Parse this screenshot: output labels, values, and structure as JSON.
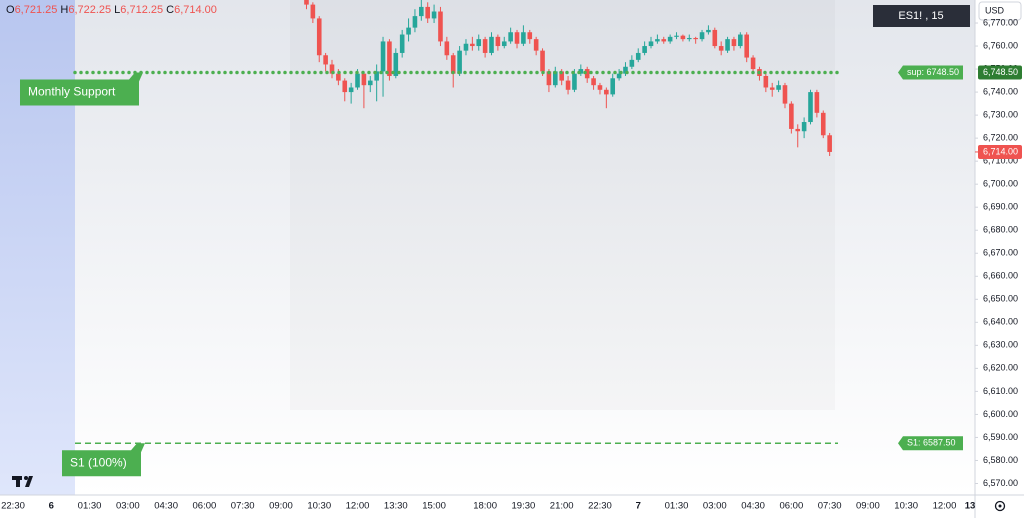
{
  "chart_data": {
    "type": "candlestick",
    "symbol": "ES1! , 15",
    "currency": "USD",
    "ohlc_header": [
      {
        "key": "O",
        "value": "6,721.25"
      },
      {
        "key": "H",
        "value": "6,722.25"
      },
      {
        "key": "L",
        "value": "6,712.25"
      },
      {
        "key": "C",
        "value": "6,714.00"
      }
    ],
    "categories": [
      "22:30",
      null,
      null,
      null,
      null,
      null,
      "6",
      null,
      null,
      null,
      null,
      null,
      "01:30",
      null,
      null,
      null,
      null,
      null,
      "03:00",
      null,
      null,
      null,
      null,
      null,
      "04:30",
      null,
      null,
      null,
      null,
      null,
      "06:00",
      null,
      null,
      null,
      null,
      null,
      "07:30",
      null,
      null,
      null,
      null,
      null,
      "09:00",
      null,
      null,
      null,
      null,
      null,
      "10:30",
      null,
      null,
      null,
      null,
      null,
      "12:00",
      null,
      null,
      null,
      null,
      null,
      "13:30",
      null,
      null,
      null,
      null,
      null,
      "15:00",
      null,
      null,
      null,
      null,
      null,
      null,
      null,
      "18:00",
      null,
      null,
      null,
      null,
      null,
      "19:30",
      null,
      null,
      null,
      null,
      null,
      "21:00",
      null,
      null,
      null,
      null,
      null,
      "22:30",
      null,
      null,
      null,
      null,
      null,
      "7",
      null,
      null,
      null,
      null,
      null,
      "01:30",
      null,
      null,
      null,
      null,
      null,
      "03:00",
      null,
      null,
      null,
      null,
      null,
      "04:30",
      null,
      null,
      null,
      null,
      null,
      "06:00",
      null,
      null,
      null,
      null,
      null,
      "07:30",
      null,
      null,
      null,
      null,
      null,
      "09:00",
      null,
      null,
      null,
      null,
      null,
      "10:30",
      null,
      null,
      null,
      null,
      null,
      "12:00",
      null,
      null,
      null,
      "13"
    ],
    "open": [
      null,
      null,
      null,
      null,
      null,
      null,
      null,
      null,
      null,
      null,
      null,
      null,
      null,
      null,
      null,
      null,
      null,
      null,
      null,
      null,
      null,
      null,
      null,
      null,
      null,
      null,
      null,
      null,
      null,
      null,
      null,
      null,
      null,
      null,
      null,
      null,
      null,
      null,
      null,
      null,
      null,
      null,
      null,
      null,
      null,
      null,
      6782,
      6778,
      6772,
      6756,
      6752,
      6748,
      6745,
      6740,
      6742,
      6748,
      6743,
      6745,
      6749,
      6762,
      6747,
      6757,
      6765,
      6768,
      6773,
      6777,
      6772,
      6775,
      6762,
      6756,
      6748,
      6758,
      6761,
      6760,
      6763,
      6757,
      6764,
      6760,
      6762,
      6766,
      6761,
      6766,
      6763,
      6758,
      6749,
      6743,
      6749,
      6745,
      6741,
      6748,
      6750,
      6746,
      6743,
      6741,
      6739,
      6746,
      6748,
      6751,
      6754,
      6757,
      6760,
      6762,
      6763,
      6762,
      6764,
      6764.5,
      6763,
      6763.5,
      6763,
      6766,
      6767,
      6760,
      6758,
      6763,
      6760,
      6765,
      6755,
      6750,
      6747,
      6742,
      6741,
      6743,
      6735,
      6724,
      6723,
      6727,
      6740,
      6731,
      6721.25,
      null,
      null,
      null,
      null,
      null,
      null,
      null,
      null,
      null,
      null,
      null,
      null,
      null,
      null,
      null,
      null,
      null,
      null,
      null,
      null,
      null,
      null
    ],
    "high": [
      null,
      null,
      null,
      null,
      null,
      null,
      null,
      null,
      null,
      null,
      null,
      null,
      null,
      null,
      null,
      null,
      null,
      null,
      null,
      null,
      null,
      null,
      null,
      null,
      null,
      null,
      null,
      null,
      null,
      null,
      null,
      null,
      null,
      null,
      null,
      null,
      null,
      null,
      null,
      null,
      null,
      null,
      null,
      null,
      null,
      null,
      6783,
      6779,
      6773,
      6757,
      6754,
      6750,
      6746,
      6744,
      6750,
      6749,
      6747,
      6752,
      6764,
      6763,
      6759,
      6767,
      6772,
      6776,
      6780,
      6779,
      6778,
      6777,
      6764,
      6757,
      6760,
      6763,
      6764,
      6765,
      6764,
      6766,
      6765,
      6764,
      6768,
      6767,
      6769,
      6767,
      6764,
      6759,
      6750,
      6751,
      6750,
      6747,
      6750,
      6752,
      6751,
      6747,
      6744,
      6742,
      6748,
      6750,
      6753,
      6756,
      6759,
      6762,
      6764,
      6765,
      6764,
      6765,
      6766,
      6765,
      6765,
      6764,
      6767,
      6769,
      6768,
      6762,
      6764,
      6764,
      6766,
      6766,
      6756,
      6751,
      6748,
      6744,
      6745,
      6744,
      6736,
      6726,
      6729,
      6741,
      6741,
      6732,
      6722.25,
      null,
      null,
      null,
      null,
      null,
      null,
      null,
      null,
      null,
      null,
      null,
      null,
      null,
      null,
      null,
      null,
      null,
      null,
      null,
      null,
      null,
      null
    ],
    "low": [
      null,
      null,
      null,
      null,
      null,
      null,
      null,
      null,
      null,
      null,
      null,
      null,
      null,
      null,
      null,
      null,
      null,
      null,
      null,
      null,
      null,
      null,
      null,
      null,
      null,
      null,
      null,
      null,
      null,
      null,
      null,
      null,
      null,
      null,
      null,
      null,
      null,
      null,
      null,
      null,
      null,
      null,
      null,
      null,
      null,
      null,
      6776,
      6770,
      6753,
      6749,
      6746,
      6743,
      6736,
      6735,
      6741,
      6733,
      6740,
      6736,
      6738,
      6745,
      6746,
      6755,
      6762,
      6766,
      6771,
      6770,
      6770,
      6760,
      6754,
      6742,
      6747,
      6756,
      6758,
      6758,
      6755,
      6756,
      6758,
      6759,
      6761,
      6759,
      6760,
      6761,
      6756,
      6747,
      6740,
      6742,
      6743,
      6739,
      6740,
      6747,
      6744,
      6741,
      6739,
      6733,
      6738,
      6745,
      6747,
      6750,
      6753,
      6756,
      6759,
      6761,
      6761,
      6761,
      6763,
      6762,
      6762,
      6761,
      6762,
      6765,
      6759,
      6756,
      6757,
      6758,
      6759,
      6753,
      6748,
      6745,
      6740,
      6738,
      6740,
      6733,
      6722,
      6716,
      6720,
      6726,
      6729,
      6720,
      6712.25,
      null,
      null,
      null,
      null,
      null,
      null,
      null,
      null,
      null,
      null,
      null,
      null,
      null,
      null,
      null,
      null,
      null,
      null,
      null,
      null,
      null,
      null
    ],
    "close": [
      null,
      null,
      null,
      null,
      null,
      null,
      null,
      null,
      null,
      null,
      null,
      null,
      null,
      null,
      null,
      null,
      null,
      null,
      null,
      null,
      null,
      null,
      null,
      null,
      null,
      null,
      null,
      null,
      null,
      null,
      null,
      null,
      null,
      null,
      null,
      null,
      null,
      null,
      null,
      null,
      null,
      null,
      null,
      null,
      null,
      null,
      6778,
      6772,
      6756,
      6752,
      6748,
      6745,
      6740,
      6742,
      6748,
      6743,
      6745,
      6749,
      6762,
      6747,
      6757,
      6765,
      6768,
      6773,
      6777,
      6772,
      6775,
      6762,
      6756,
      6748,
      6758,
      6761,
      6760,
      6763,
      6757,
      6764,
      6760,
      6762,
      6766,
      6761,
      6766,
      6763,
      6758,
      6749,
      6743,
      6749,
      6745,
      6741,
      6748,
      6750,
      6746,
      6743,
      6741,
      6739,
      6746,
      6748,
      6751,
      6754,
      6757,
      6760,
      6762,
      6763,
      6762,
      6764,
      6764.5,
      6763,
      6763.5,
      6763,
      6766,
      6767,
      6760,
      6758,
      6763,
      6760,
      6765,
      6755,
      6750,
      6747,
      6742,
      6741,
      6743,
      6735,
      6724,
      6723,
      6727,
      6740,
      6731,
      6721.25,
      6714,
      null,
      null,
      null,
      null,
      null,
      null,
      null,
      null,
      null,
      null,
      null,
      null,
      null,
      null,
      null,
      null,
      null,
      null,
      null,
      null,
      null,
      null
    ],
    "up_color": "#26a69a",
    "down_color": "#ef5350",
    "ylim": [
      6565,
      6780
    ],
    "yticks": [
      {
        "value": 6570,
        "label": "6,570.00"
      },
      {
        "value": 6580,
        "label": "6,580.00"
      },
      {
        "value": 6590,
        "label": "6,590.00"
      },
      {
        "value": 6600,
        "label": "6,600.00"
      },
      {
        "value": 6610,
        "label": "6,610.00"
      },
      {
        "value": 6620,
        "label": "6,620.00"
      },
      {
        "value": 6630,
        "label": "6,630.00"
      },
      {
        "value": 6640,
        "label": "6,640.00"
      },
      {
        "value": 6650,
        "label": "6,650.00"
      },
      {
        "value": 6660,
        "label": "6,660.00"
      },
      {
        "value": 6670,
        "label": "6,670.00"
      },
      {
        "value": 6680,
        "label": "6,680.00"
      },
      {
        "value": 6690,
        "label": "6,690.00"
      },
      {
        "value": 6700,
        "label": "6,700.00"
      },
      {
        "value": 6710,
        "label": "6,710.00"
      },
      {
        "value": 6720,
        "label": "6,720.00"
      },
      {
        "value": 6730,
        "label": "6,730.00"
      },
      {
        "value": 6740,
        "label": "6,740.00"
      },
      {
        "value": 6750,
        "label": "6,750.00"
      },
      {
        "value": 6760,
        "label": "6,760.00"
      },
      {
        "value": 6770,
        "label": "6,770.00"
      }
    ],
    "grid": false,
    "levels": [
      {
        "name": "Monthly Support",
        "value": 6748.5,
        "label": "sup: 6748.50",
        "axis_label": "6,748.50",
        "style": "dotted",
        "color": "#4caf50"
      },
      {
        "name": "S1 (100%)",
        "value": 6587.5,
        "label": "S1: 6587.50",
        "style": "dashed",
        "color": "#4caf50"
      }
    ],
    "last_price": {
      "value": 6714,
      "label": "6,714.00"
    }
  }
}
